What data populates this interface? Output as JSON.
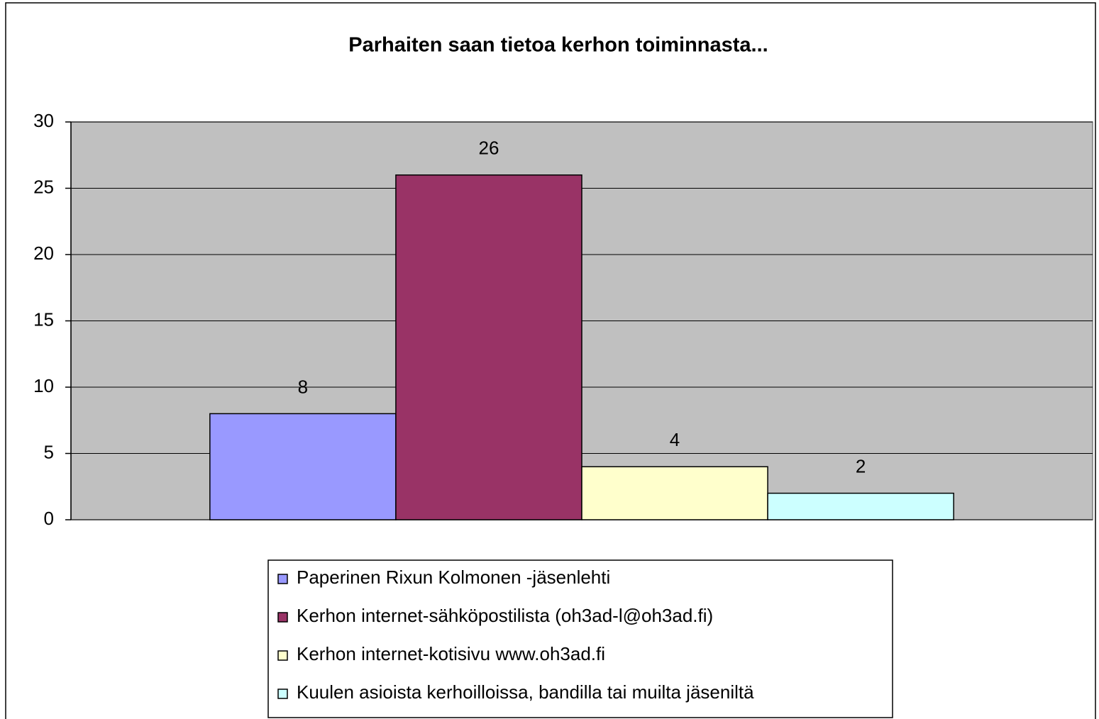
{
  "chart_data": {
    "type": "bar",
    "title": "Parhaiten saan tietoa kerhon toiminnasta...",
    "categories": [
      null
    ],
    "series": [
      {
        "name": "Paperinen Rixun Kolmonen -jäsenlehti",
        "color": "#9999ff",
        "values": [
          8
        ]
      },
      {
        "name": "Kerhon internet-sähköpostilista (oh3ad-l@oh3ad.fi)",
        "color": "#993366",
        "values": [
          26
        ]
      },
      {
        "name": "Kerhon internet-kotisivu www.oh3ad.fi",
        "color": "#ffffcc",
        "values": [
          4
        ]
      },
      {
        "name": "Kuulen asioista kerhoilloissa, bandilla tai muilta jäseniltä",
        "color": "#ccffff",
        "values": [
          2
        ]
      }
    ],
    "ylim": [
      0,
      30
    ],
    "yticks": [
      0,
      5,
      10,
      15,
      20,
      25,
      30
    ],
    "grid": true,
    "legend": "bottom"
  }
}
